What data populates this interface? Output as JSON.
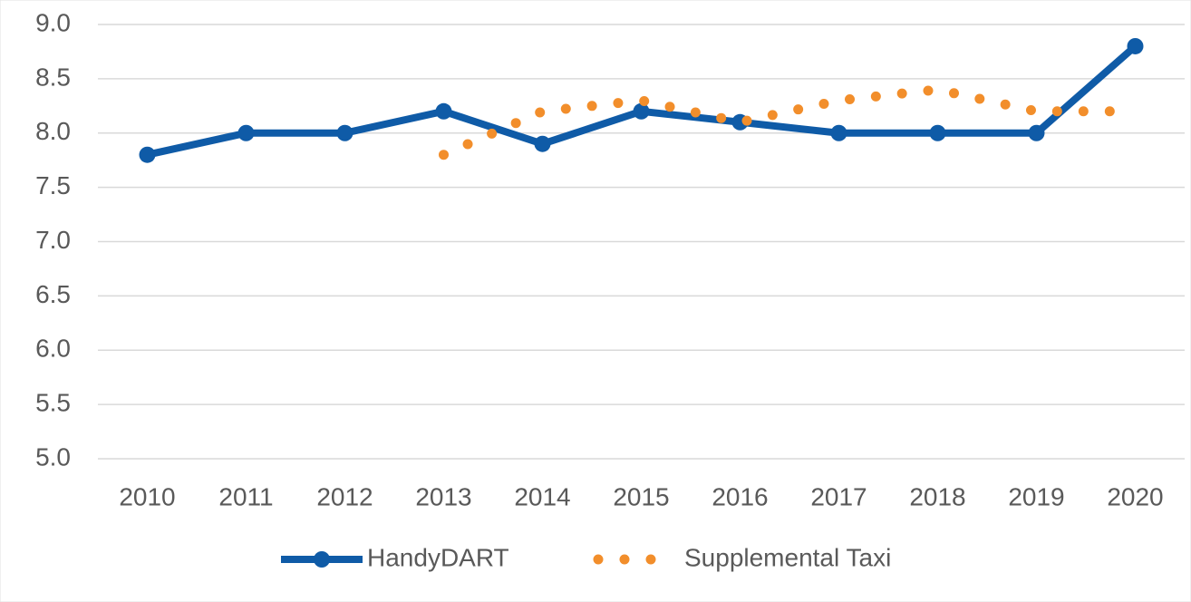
{
  "chart_data": {
    "type": "line",
    "categories": [
      "2010",
      "2011",
      "2012",
      "2013",
      "2014",
      "2015",
      "2016",
      "2017",
      "2018",
      "2019",
      "2020"
    ],
    "series": [
      {
        "name": "HandyDART",
        "color": "#0f5ba7",
        "style": "solid",
        "values": [
          7.8,
          8.0,
          8.0,
          8.2,
          7.9,
          8.2,
          8.1,
          8.0,
          8.0,
          8.0,
          8.8
        ]
      },
      {
        "name": "Supplemental Taxi",
        "color": "#f28e2b",
        "style": "dotted",
        "values": [
          null,
          null,
          null,
          7.8,
          8.2,
          8.3,
          8.1,
          8.3,
          8.4,
          8.2,
          8.2
        ]
      }
    ],
    "ylim": [
      5,
      9
    ],
    "yticks": [
      {
        "value": 5,
        "label": "5.0"
      },
      {
        "value": 5.5,
        "label": "5.5"
      },
      {
        "value": 6,
        "label": "6.0"
      },
      {
        "value": 6.5,
        "label": "6.5"
      },
      {
        "value": 7,
        "label": "7.0"
      },
      {
        "value": 7.5,
        "label": "7.5"
      },
      {
        "value": 8,
        "label": "8.0"
      },
      {
        "value": 8.5,
        "label": "8.5"
      },
      {
        "value": 9,
        "label": "9.0"
      }
    ],
    "grid": true,
    "legend": "bottom"
  }
}
